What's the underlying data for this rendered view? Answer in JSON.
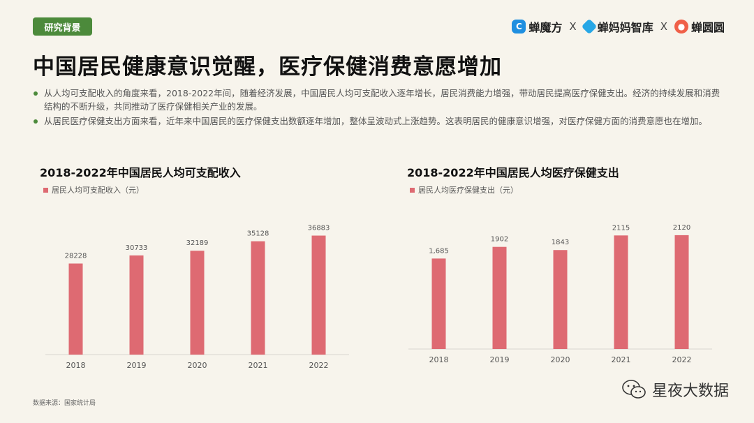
{
  "header": {
    "tag": "研究背景",
    "title": "中国居民健康意识觉醒，医疗保健消费意愿增加",
    "logos": [
      {
        "label": "蝉魔方",
        "icon": "chanmofang-logo-icon",
        "color": "#1f8fe0"
      },
      {
        "label": "蝉妈妈智库",
        "icon": "chanmama-logo-icon",
        "color": "#27a7e6"
      },
      {
        "label": "蝉圆圆",
        "icon": "chanyuanyuan-logo-icon",
        "color": "#f06048"
      }
    ],
    "separator": "X"
  },
  "bullets": [
    "从人均可支配收入的角度来看，2018-2022年间，随着经济发展，中国居民人均可支配收入逐年增长，居民消费能力增强，带动居民提高医疗保健支出。经济的持续发展和消费结构的不断升级，共同推动了医疗保健相关产业的发展。",
    "从居民医疗保健支出方面来看，近年来中国居民的医疗保健支出数额逐年增加，整体呈波动式上涨趋势。这表明居民的健康意识增强，对医疗保健方面的消费意愿也在增加。"
  ],
  "chart_data": [
    {
      "type": "bar",
      "title": "2018-2022年中国居民人均可支配收入",
      "categories": [
        "2018",
        "2019",
        "2020",
        "2021",
        "2022"
      ],
      "series": [
        {
          "name": "居民人均可支配收入（元）",
          "values": [
            28228,
            30733,
            32189,
            35128,
            36883
          ]
        }
      ],
      "value_labels": [
        "28228",
        "30733",
        "32189",
        "35128",
        "36883"
      ],
      "ylim": [
        0,
        45000
      ],
      "color": "#de6a72",
      "grid": false,
      "legend": "top-left"
    },
    {
      "type": "bar",
      "title": "2018-2022年中国居民人均医疗保健支出",
      "categories": [
        "2018",
        "2019",
        "2020",
        "2021",
        "2022"
      ],
      "series": [
        {
          "name": "居民人均医疗保健支出（元）",
          "values": [
            1685,
            1902,
            1843,
            2115,
            2120
          ]
        }
      ],
      "value_labels": [
        "1,685",
        "1902",
        "1843",
        "2115",
        "2120"
      ],
      "ylim": [
        0,
        2600
      ],
      "color": "#de6a72",
      "grid": false,
      "legend": "top-left"
    }
  ],
  "footer": {
    "source": "数据来源：国家统计局",
    "watermark": "星夜大数据",
    "watermark_icon": "wechat-icon"
  }
}
